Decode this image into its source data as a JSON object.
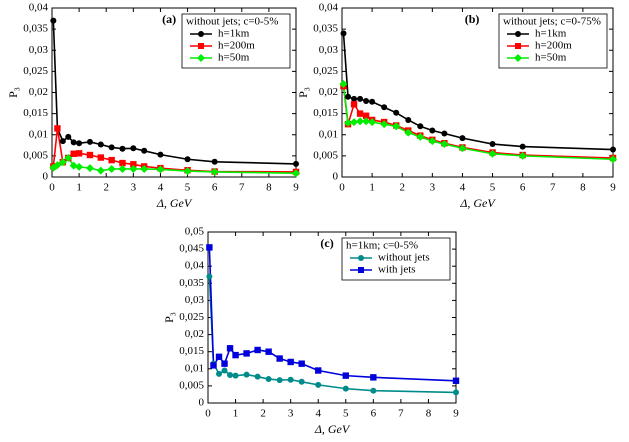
{
  "chart_data": [
    {
      "type": "line",
      "title": "(a)",
      "xlabel": "Δ, GeV",
      "ylabel": "P₃",
      "legend_title": "without jets; c=0-5%",
      "legend": "upper right",
      "x": [
        0.05,
        0.2,
        0.4,
        0.6,
        0.8,
        1.0,
        1.4,
        1.8,
        2.2,
        2.6,
        3.0,
        3.4,
        4,
        5,
        6,
        9
      ],
      "xlim": [
        0,
        9
      ],
      "xticks": [
        0,
        1,
        2,
        3,
        4,
        5,
        6,
        7,
        8,
        9
      ],
      "ylim": [
        0,
        0.04
      ],
      "yticks": [
        0,
        {
          "value": 0.005,
          "label": "0,005"
        },
        {
          "value": 0.01,
          "label": "0,01"
        },
        {
          "value": 0.015,
          "label": "0,015"
        },
        {
          "value": 0.02,
          "label": "0,02"
        },
        {
          "value": 0.025,
          "label": "0,025"
        },
        {
          "value": 0.03,
          "label": "0,03"
        },
        {
          "value": 0.035,
          "label": "0,035"
        },
        {
          "value": 0.04,
          "label": "0,04"
        }
      ],
      "series": [
        {
          "name": "h=1km",
          "color": "#000000",
          "marker": "circle",
          "values": [
            0.037,
            0.0115,
            0.0085,
            0.0095,
            0.0082,
            0.008,
            0.0083,
            0.0077,
            0.007,
            0.0067,
            0.0068,
            0.0062,
            0.0053,
            0.0042,
            0.0036,
            0.0031
          ]
        },
        {
          "name": "h=200m",
          "color": "#ff0000",
          "marker": "square",
          "values": [
            0.0025,
            0.0115,
            0.0035,
            0.0045,
            0.0055,
            0.0056,
            0.0052,
            0.0046,
            0.004,
            0.0033,
            0.003,
            0.0025,
            0.0021,
            0.0016,
            0.0013,
            0.0012
          ]
        },
        {
          "name": "h=50m",
          "color": "#00ee00",
          "marker": "diamond",
          "values": [
            0.0022,
            0.0028,
            0.0035,
            0.0045,
            0.0027,
            0.0024,
            0.0021,
            0.0015,
            0.0019,
            0.0019,
            0.0019,
            0.0019,
            0.0018,
            0.0014,
            0.0012,
            0.0009
          ]
        }
      ]
    },
    {
      "type": "line",
      "title": "(b)",
      "xlabel": "Δ, GeV",
      "ylabel": "P₃",
      "legend_title": "without jets; c=0-75%",
      "legend": "upper right",
      "x": [
        0.05,
        0.2,
        0.4,
        0.6,
        0.8,
        1.0,
        1.4,
        1.8,
        2.2,
        2.6,
        3.0,
        3.4,
        4,
        5,
        6,
        9
      ],
      "xlim": [
        0,
        9
      ],
      "xticks": [
        0,
        1,
        2,
        3,
        4,
        5,
        6,
        7,
        8,
        9
      ],
      "ylim": [
        0,
        0.04
      ],
      "yticks": [
        0,
        {
          "value": 0.005,
          "label": "0,005"
        },
        {
          "value": 0.01,
          "label": "0,01"
        },
        {
          "value": 0.015,
          "label": "0,015"
        },
        {
          "value": 0.02,
          "label": "0,02"
        },
        {
          "value": 0.025,
          "label": "0,025"
        },
        {
          "value": 0.03,
          "label": "0,03"
        },
        {
          "value": 0.035,
          "label": "0,035"
        },
        {
          "value": 0.04,
          "label": "0,04"
        }
      ],
      "series": [
        {
          "name": "h=1km",
          "color": "#000000",
          "marker": "circle",
          "values": [
            0.034,
            0.019,
            0.0185,
            0.0185,
            0.018,
            0.0178,
            0.0165,
            0.0152,
            0.0135,
            0.012,
            0.011,
            0.0103,
            0.0092,
            0.0078,
            0.0072,
            0.0065
          ]
        },
        {
          "name": "h=200m",
          "color": "#ff0000",
          "marker": "square",
          "values": [
            0.0215,
            0.0125,
            0.0172,
            0.015,
            0.0145,
            0.0135,
            0.013,
            0.0122,
            0.011,
            0.0098,
            0.0088,
            0.008,
            0.007,
            0.0058,
            0.0052,
            0.0045
          ]
        },
        {
          "name": "h=50m",
          "color": "#00ee00",
          "marker": "diamond",
          "values": [
            0.022,
            0.0128,
            0.013,
            0.0132,
            0.0132,
            0.013,
            0.0125,
            0.012,
            0.0105,
            0.0095,
            0.0085,
            0.0078,
            0.0068,
            0.0055,
            0.005,
            0.0042
          ]
        }
      ]
    },
    {
      "type": "line",
      "title": "(c)",
      "xlabel": "Δ, GeV",
      "ylabel": "P₃",
      "legend_title": "h=1km; c=0-5%",
      "legend": "upper right",
      "x": [
        0.05,
        0.2,
        0.4,
        0.6,
        0.8,
        1.0,
        1.4,
        1.8,
        2.2,
        2.6,
        3.0,
        3.4,
        4,
        5,
        6,
        9
      ],
      "xlim": [
        0,
        9
      ],
      "xticks": [
        0,
        1,
        2,
        3,
        4,
        5,
        6,
        7,
        8,
        9
      ],
      "ylim": [
        0,
        0.05
      ],
      "yticks": [
        0,
        {
          "value": 0.005,
          "label": "0,005"
        },
        {
          "value": 0.01,
          "label": "0,01"
        },
        {
          "value": 0.015,
          "label": "0,015"
        },
        {
          "value": 0.02,
          "label": "0,02"
        },
        {
          "value": 0.025,
          "label": "0,025"
        },
        {
          "value": 0.03,
          "label": "0,03"
        },
        {
          "value": 0.035,
          "label": "0,035"
        },
        {
          "value": 0.04,
          "label": "0,04"
        },
        {
          "value": 0.045,
          "label": "0,045"
        },
        {
          "value": 0.05,
          "label": "0,05"
        }
      ],
      "series": [
        {
          "name": "without jets",
          "color": "#008b8b",
          "marker": "circle",
          "values": [
            0.037,
            0.0115,
            0.0085,
            0.0095,
            0.0082,
            0.008,
            0.0083,
            0.0077,
            0.007,
            0.0067,
            0.0068,
            0.0062,
            0.0053,
            0.0042,
            0.0036,
            0.0031
          ]
        },
        {
          "name": "with jets",
          "color": "#0000dd",
          "marker": "square",
          "values": [
            0.0455,
            0.011,
            0.0135,
            0.0115,
            0.016,
            0.014,
            0.0145,
            0.0155,
            0.015,
            0.013,
            0.012,
            0.0115,
            0.0095,
            0.008,
            0.0075,
            0.0065
          ]
        }
      ]
    }
  ]
}
